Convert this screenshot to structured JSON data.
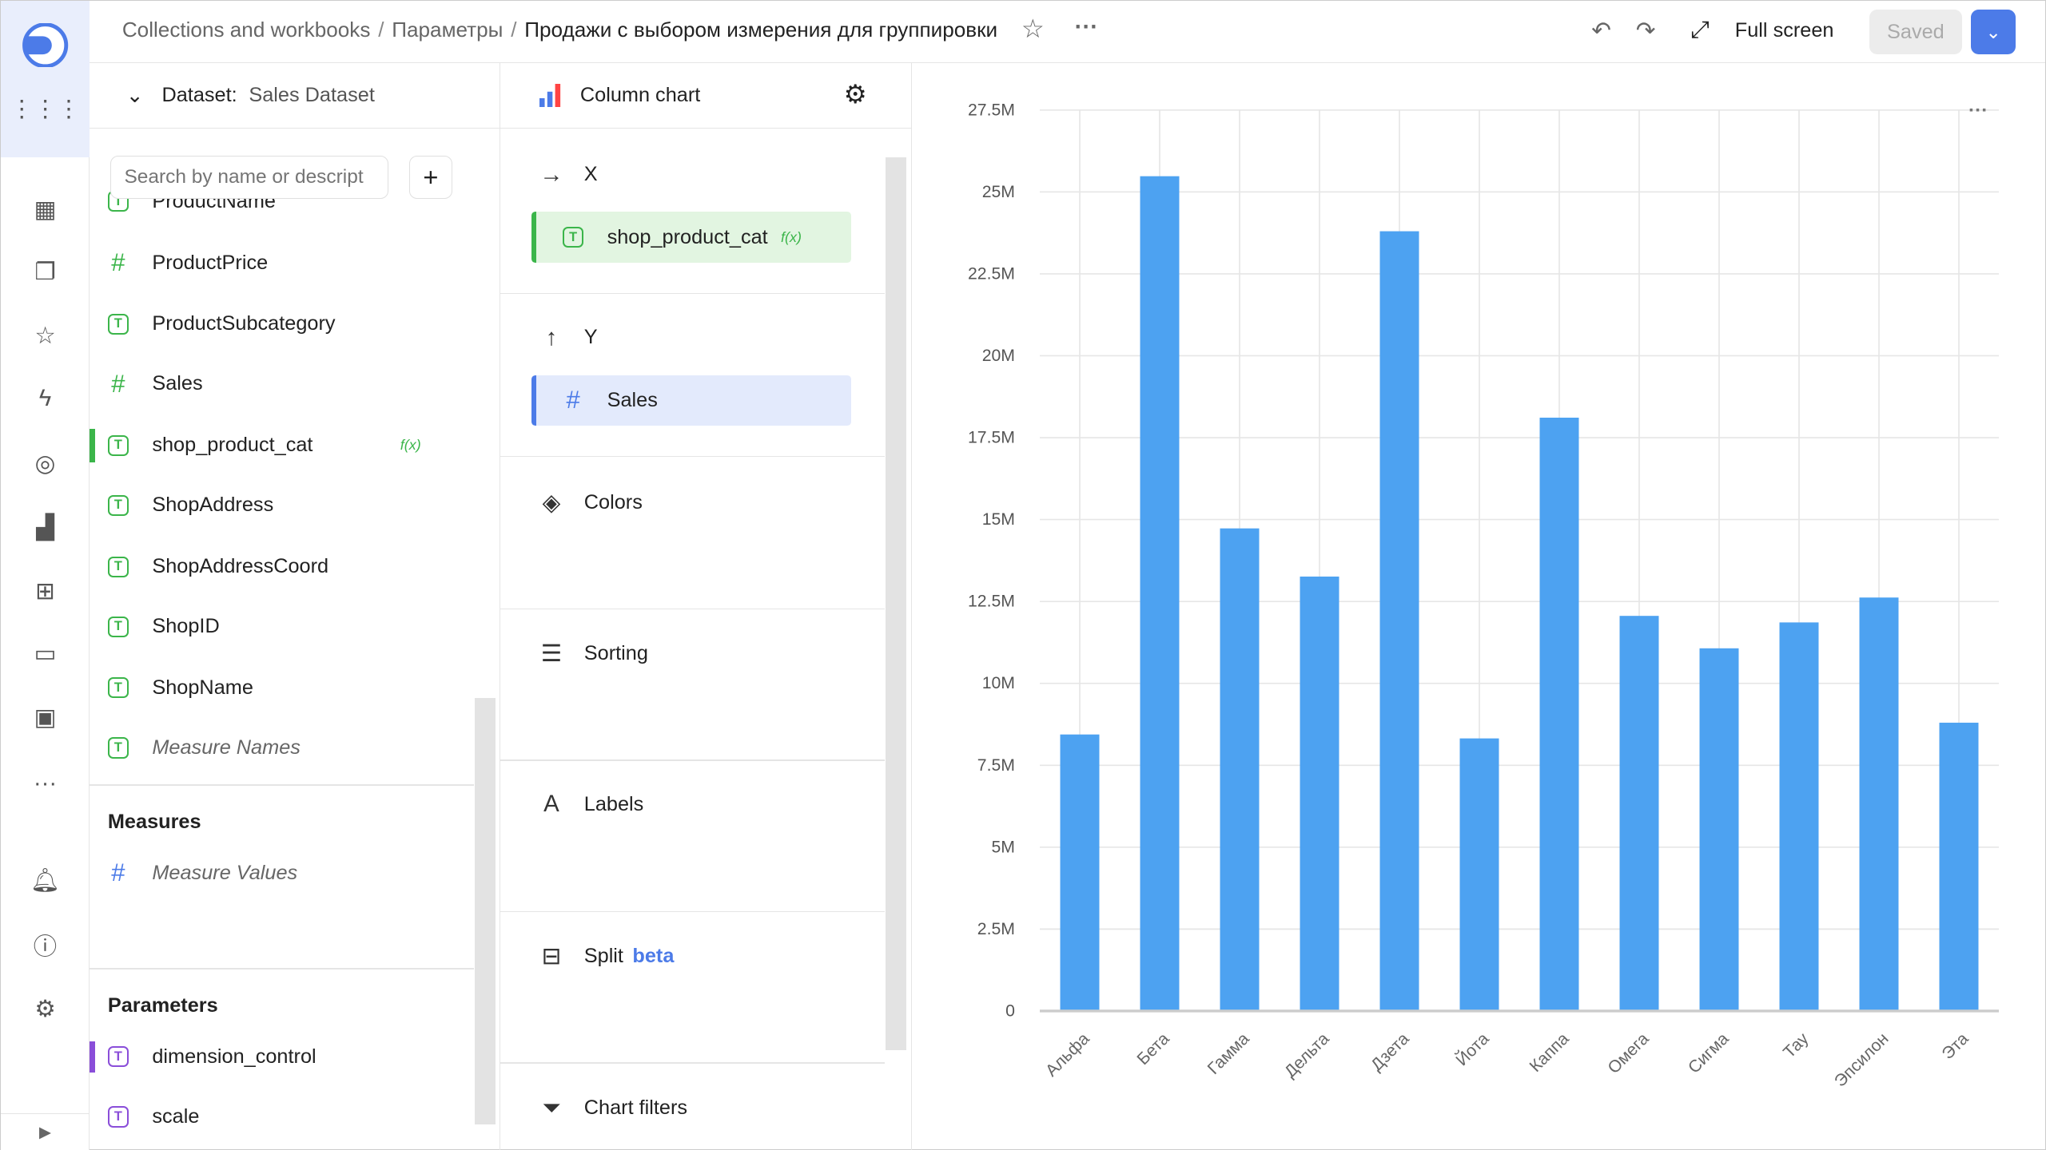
{
  "header": {
    "breadcrumbs": [
      "Collections and workbooks",
      "Параметры"
    ],
    "title": "Продажи с выбором измерения для группировки",
    "fullscreen_label": "Full screen",
    "saved_label": "Saved"
  },
  "dataset": {
    "label": "Dataset:",
    "name": "Sales Dataset",
    "search_placeholder": "Search by name or descript",
    "fields": [
      {
        "name": "ProductName",
        "type": "text"
      },
      {
        "name": "ProductPrice",
        "type": "number"
      },
      {
        "name": "ProductSubcategory",
        "type": "text"
      },
      {
        "name": "Sales",
        "type": "number"
      },
      {
        "name": "shop_product_cat",
        "type": "text",
        "formula": "f(x)"
      },
      {
        "name": "ShopAddress",
        "type": "text"
      },
      {
        "name": "ShopAddressCoord",
        "type": "text"
      },
      {
        "name": "ShopID",
        "type": "text"
      },
      {
        "name": "ShopName",
        "type": "text"
      },
      {
        "name": "Measure Names",
        "type": "text"
      }
    ],
    "measures_title": "Measures",
    "measures": [
      {
        "name": "Measure Values"
      }
    ],
    "parameters_title": "Parameters",
    "parameters": [
      {
        "name": "dimension_control"
      },
      {
        "name": "scale"
      }
    ]
  },
  "viz": {
    "type_label": "Column chart",
    "x_label": "X",
    "x_field": "shop_product_cat",
    "x_formula": "f(x)",
    "y_label": "Y",
    "y_field": "Sales",
    "colors": "Colors",
    "sorting": "Sorting",
    "labels": "Labels",
    "split": "Split",
    "split_badge": "beta",
    "filters": "Chart filters"
  },
  "chart_data": {
    "type": "bar",
    "categories": [
      "Альфа",
      "Бета",
      "Гамма",
      "Дельта",
      "Дзета",
      "Йота",
      "Каппа",
      "Омега",
      "Сигма",
      "Тау",
      "Эпсилон",
      "Эта"
    ],
    "values": [
      8440000,
      25480000,
      14730000,
      13260000,
      23800000,
      8320000,
      18110000,
      12060000,
      11070000,
      11860000,
      12620000,
      8800000
    ],
    "yticks": [
      "0",
      "2.5M",
      "5M",
      "7.5M",
      "10M",
      "12.5M",
      "15M",
      "17.5M",
      "20M",
      "22.5M",
      "25M",
      "27.5M"
    ],
    "ylim": [
      0,
      27500000
    ],
    "color": "#4da2f1",
    "grid": true,
    "legend": "none"
  }
}
